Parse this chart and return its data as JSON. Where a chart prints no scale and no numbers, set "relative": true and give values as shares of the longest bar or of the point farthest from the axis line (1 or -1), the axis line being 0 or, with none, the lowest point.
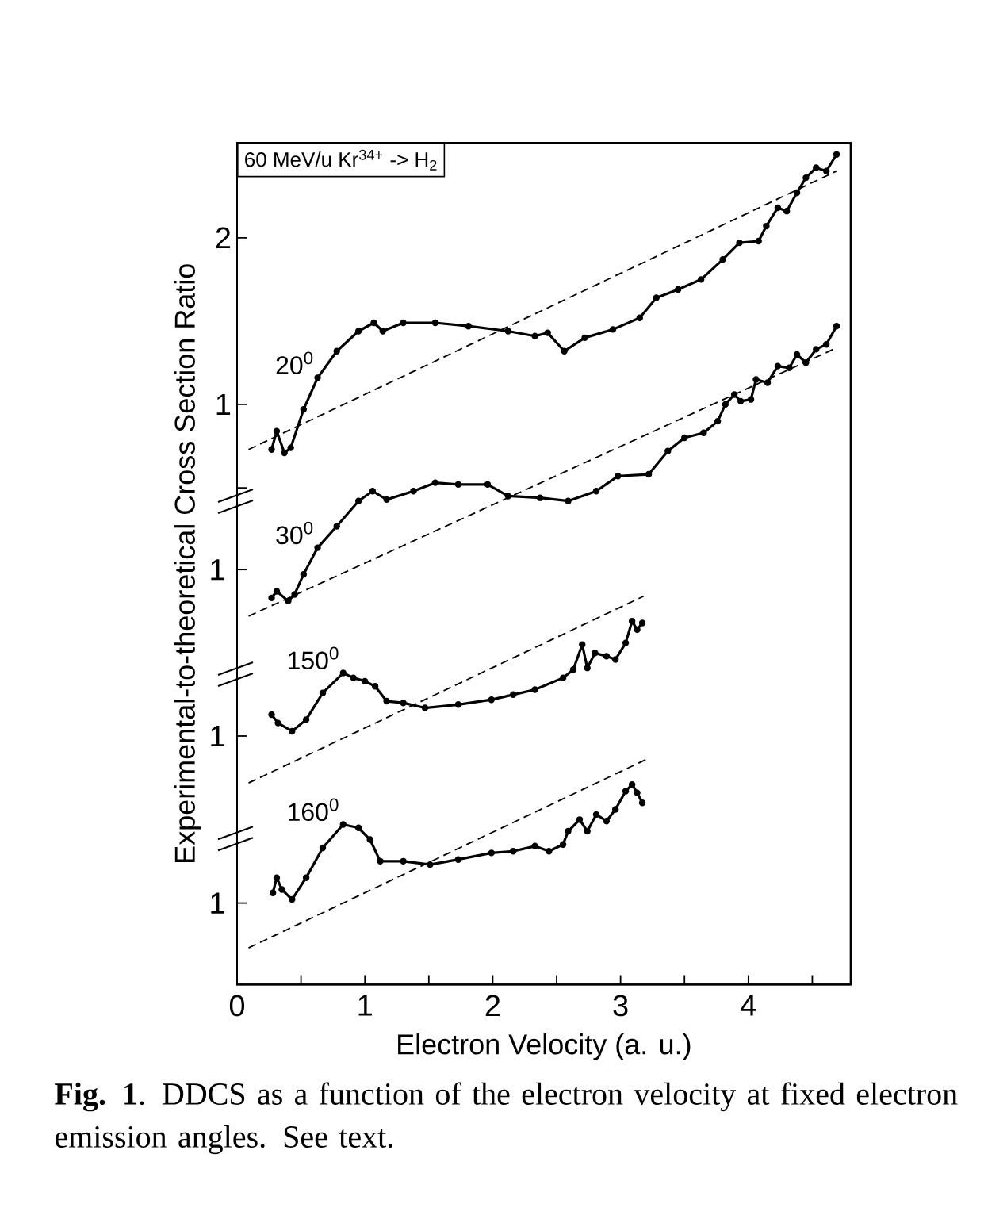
{
  "chart_data": [
    {
      "type": "line",
      "xlim": [
        0,
        4.8
      ],
      "ylim": [
        -2.48,
        2.57
      ],
      "xticks": [
        0,
        {
          "value": 0.5,
          "label": null
        },
        1,
        {
          "value": 1.5,
          "label": null
        },
        2,
        {
          "value": 2.5,
          "label": null
        },
        3,
        {
          "value": 3.5,
          "label": null
        },
        4,
        {
          "value": 4.5,
          "label": null
        }
      ],
      "yticks": [
        {
          "value": 0.5,
          "label": null
        },
        1,
        2
      ],
      "xlabel": "Electron Velocity (a. u.)",
      "ylabel": "Experimental-to-theoretical Cross Section Ratio",
      "annotations": [
        "60 MeV/u Kr$^{34+}$ -> H$_{2}$",
        "**Fig. 1**. DDCS as a function of the electron velocity at fixed electron emission angles. See text."
      ],
      "series": [
        {
          "name": "20$^{0}$",
          "color": "#000000",
          "marker": "circle",
          "line_style": "solid",
          "x": [
            0.27,
            0.31,
            0.37,
            0.42,
            0.52,
            0.63,
            0.78,
            0.95,
            1.07,
            1.14,
            1.3,
            1.55,
            1.81,
            2.12,
            2.33,
            2.43,
            2.56,
            2.72,
            2.94,
            3.15,
            3.28,
            3.45,
            3.63,
            3.8,
            3.93,
            4.08,
            4.14,
            4.23,
            4.3,
            4.38,
            4.45,
            4.53,
            4.61,
            4.69
          ],
          "values": [
            0.73,
            0.84,
            0.71,
            0.74,
            0.97,
            1.16,
            1.32,
            1.44,
            1.49,
            1.44,
            1.49,
            1.49,
            1.47,
            1.44,
            1.41,
            1.43,
            1.32,
            1.4,
            1.45,
            1.52,
            1.64,
            1.69,
            1.75,
            1.87,
            1.97,
            1.98,
            2.07,
            2.18,
            2.16,
            2.27,
            2.36,
            2.42,
            2.4,
            2.5
          ]
        },
        {
          "color": "#000000",
          "marker": "none",
          "line_style": "dashed",
          "x": [
            0.09,
            4.69
          ],
          "values": [
            0.73,
            2.4
          ]
        }
      ]
    },
    {
      "type": "line",
      "relative": true,
      "xlim": [
        0,
        4.8
      ],
      "tick_labels": false,
      "annotations": [
        "1"
      ],
      "series": [
        {
          "name": "30$^{0}$",
          "color": "#000000",
          "marker": "circle",
          "line_style": "solid",
          "x": [
            0.27,
            0.31,
            0.4,
            0.45,
            0.52,
            0.63,
            0.78,
            0.95,
            1.06,
            1.17,
            1.38,
            1.55,
            1.73,
            1.96,
            2.12,
            2.37,
            2.59,
            2.81,
            2.98,
            3.22,
            3.37,
            3.5,
            3.65,
            3.76,
            3.82,
            3.89,
            3.94,
            4.02,
            4.06,
            4.15,
            4.23,
            4.32,
            4.38,
            4.45,
            4.53,
            4.61,
            4.69
          ],
          "values": [
            0.063,
            0.086,
            0.052,
            0.075,
            0.144,
            0.236,
            0.31,
            0.397,
            0.431,
            0.402,
            0.431,
            0.46,
            0.454,
            0.454,
            0.414,
            0.408,
            0.397,
            0.431,
            0.483,
            0.489,
            0.569,
            0.615,
            0.632,
            0.672,
            0.73,
            0.764,
            0.741,
            0.747,
            0.816,
            0.805,
            0.862,
            0.856,
            0.902,
            0.874,
            0.92,
            0.937,
            1
          ]
        },
        {
          "color": "#000000",
          "marker": "none",
          "line_style": "dashed",
          "x": [
            0.09,
            4.69
          ],
          "values": [
            0,
            0.925
          ]
        }
      ]
    },
    {
      "type": "line",
      "relative": true,
      "xlim": [
        0,
        4.8
      ],
      "tick_labels": false,
      "annotations": [
        "1"
      ],
      "series": [
        {
          "name": "150$^{0}$",
          "color": "#000000",
          "marker": "circle",
          "line_style": "solid",
          "x": [
            0.27,
            0.32,
            0.43,
            0.54,
            0.67,
            0.83,
            0.91,
            1.0,
            1.08,
            1.17,
            1.3,
            1.47,
            1.73,
            1.99,
            2.16,
            2.33,
            2.55,
            2.63,
            2.7,
            2.74,
            2.8,
            2.89,
            2.96,
            3.04,
            3.09,
            3.13,
            3.17
          ],
          "values": [
            0.366,
            0.321,
            0.277,
            0.339,
            0.482,
            0.589,
            0.563,
            0.545,
            0.518,
            0.438,
            0.429,
            0.402,
            0.42,
            0.446,
            0.473,
            0.5,
            0.563,
            0.607,
            0.741,
            0.616,
            0.696,
            0.679,
            0.661,
            0.75,
            0.866,
            0.821,
            0.857
          ]
        },
        {
          "color": "#000000",
          "marker": "none",
          "line_style": "dashed",
          "x": [
            0.09,
            3.18
          ],
          "values": [
            0,
            1
          ]
        }
      ]
    },
    {
      "type": "line",
      "relative": true,
      "xlim": [
        0,
        4.8
      ],
      "tick_labels": false,
      "annotations": [
        "1"
      ],
      "series": [
        {
          "name": "160$^{0}$",
          "color": "#000000",
          "marker": "circle",
          "line_style": "solid",
          "x": [
            0.28,
            0.31,
            0.35,
            0.43,
            0.54,
            0.67,
            0.83,
            0.95,
            1.04,
            1.12,
            1.3,
            1.51,
            1.73,
            1.99,
            2.16,
            2.33,
            2.44,
            2.55,
            2.59,
            2.68,
            2.74,
            2.81,
            2.89,
            2.96,
            3.04,
            3.09,
            3.13,
            3.17
          ],
          "values": [
            0.292,
            0.372,
            0.31,
            0.257,
            0.372,
            0.531,
            0.655,
            0.637,
            0.575,
            0.46,
            0.46,
            0.442,
            0.469,
            0.504,
            0.513,
            0.54,
            0.513,
            0.549,
            0.619,
            0.681,
            0.619,
            0.708,
            0.673,
            0.735,
            0.832,
            0.867,
            0.823,
            0.77
          ]
        },
        {
          "color": "#000000",
          "marker": "none",
          "line_style": "dashed",
          "x": [
            0.09,
            3.2
          ],
          "values": [
            0,
            1
          ]
        }
      ]
    }
  ]
}
